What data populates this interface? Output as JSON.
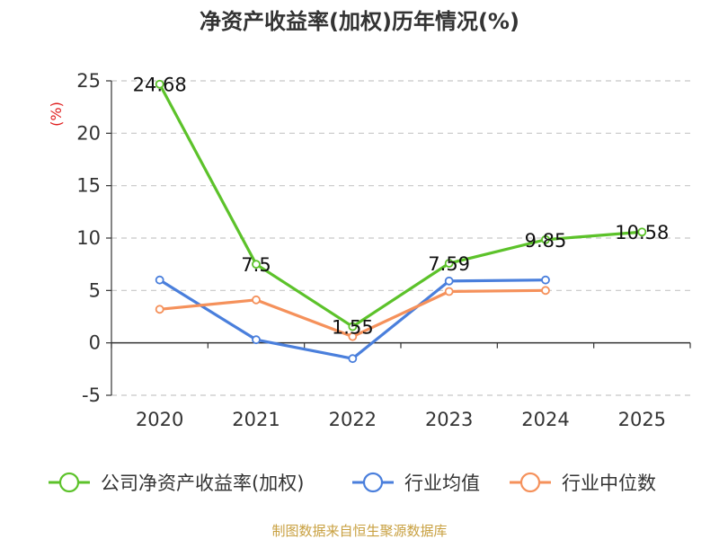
{
  "chart_data": {
    "type": "line",
    "title": "净资产收益率(加权)历年情况(%)",
    "ylabel": "(%)",
    "xlabel": "",
    "categories": [
      "2020",
      "2021",
      "2022",
      "2023",
      "2024",
      "2025"
    ],
    "ylim": [
      -5,
      25
    ],
    "yticks": [
      25,
      20,
      15,
      10,
      5,
      0,
      -5
    ],
    "grid": true,
    "legend_position": "bottom",
    "series": [
      {
        "name": "公司净资产收益率(加权)",
        "color": "#5cc22a",
        "values": [
          24.68,
          7.5,
          1.55,
          7.59,
          9.85,
          10.58
        ],
        "labels": [
          "24.68",
          "7.5",
          "1.55",
          "7.59",
          "9.85",
          "10.58"
        ]
      },
      {
        "name": "行业均值",
        "color": "#4a7fdc",
        "values": [
          6.0,
          0.3,
          -1.5,
          5.9,
          6.0,
          null
        ]
      },
      {
        "name": "行业中位数",
        "color": "#f5915b",
        "values": [
          3.2,
          4.1,
          0.6,
          4.9,
          5.0,
          null
        ]
      }
    ],
    "source": "制图数据来自恒生聚源数据库"
  }
}
